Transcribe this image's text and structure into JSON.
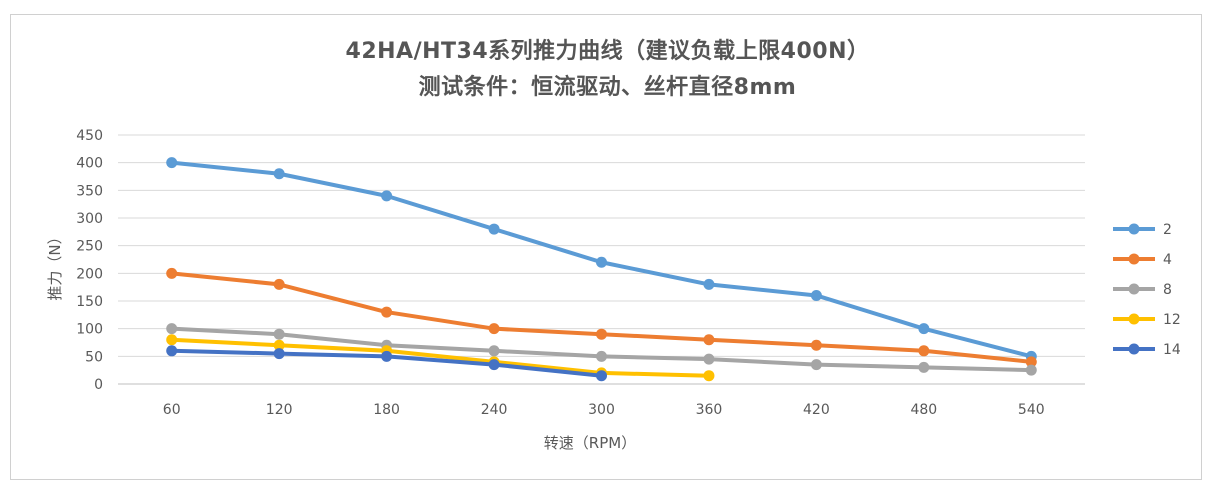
{
  "chart_data": {
    "type": "line",
    "title": "42HA/HT34系列推力曲线（建议负载上限400N）",
    "subtitle": "测试条件：恒流驱动、丝杆直径8mm",
    "xlabel": "转速（RPM）",
    "ylabel": "推力（N）",
    "categories": [
      "60",
      "120",
      "180",
      "240",
      "300",
      "360",
      "420",
      "480",
      "540"
    ],
    "yticks": [
      "0",
      "50",
      "100",
      "150",
      "200",
      "250",
      "300",
      "350",
      "400",
      "450"
    ],
    "ylim": [
      0,
      450
    ],
    "grid": true,
    "legend_position": "right",
    "series": [
      {
        "name": "2",
        "color": "#5b9bd5",
        "values": [
          400,
          380,
          340,
          280,
          220,
          180,
          160,
          100,
          50
        ]
      },
      {
        "name": "4",
        "color": "#ed7d31",
        "values": [
          200,
          180,
          130,
          100,
          90,
          80,
          70,
          60,
          40
        ]
      },
      {
        "name": "8",
        "color": "#a5a5a5",
        "values": [
          100,
          90,
          70,
          60,
          50,
          45,
          35,
          30,
          25
        ]
      },
      {
        "name": "12",
        "color": "#ffc000",
        "values": [
          80,
          70,
          60,
          40,
          20,
          15,
          null,
          null,
          null
        ]
      },
      {
        "name": "14",
        "color": "#4472c4",
        "values": [
          60,
          55,
          50,
          35,
          15,
          null,
          null,
          null,
          null
        ]
      }
    ]
  }
}
